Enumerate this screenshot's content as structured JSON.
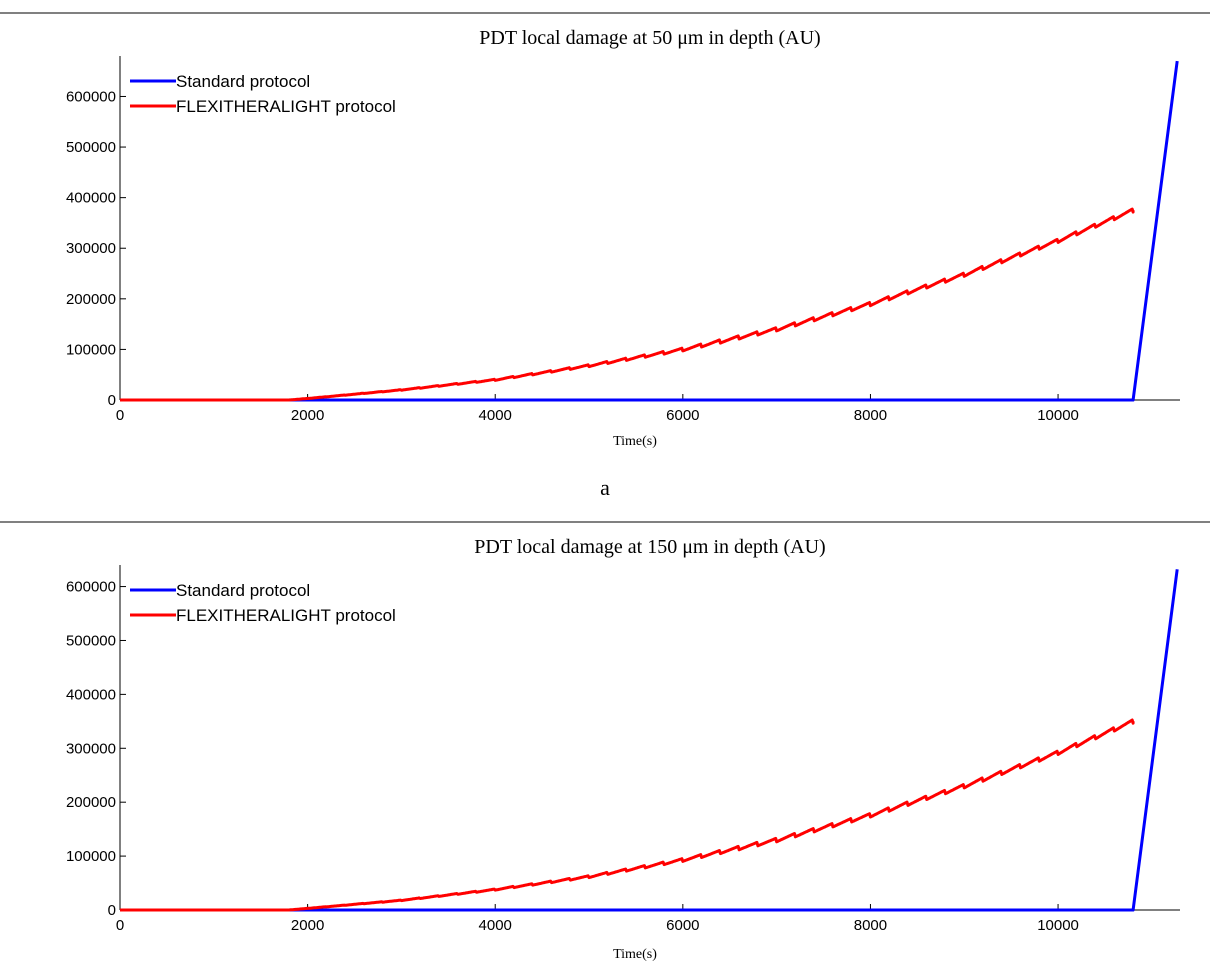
{
  "chart_data": [
    {
      "type": "line",
      "title": "PDT local damage at 50 μm in depth (AU)",
      "xlabel": "Time(s)",
      "ylabel": "",
      "xlim": [
        0,
        11300
      ],
      "ylim": [
        0,
        680000
      ],
      "xticks": [
        0,
        2000,
        4000,
        6000,
        8000,
        10000
      ],
      "yticks": [
        0,
        100000,
        200000,
        300000,
        400000,
        500000,
        600000
      ],
      "legend_position": "top-left",
      "panel_label": "a",
      "series": [
        {
          "name": "Standard protocol",
          "color": "#0000ff",
          "x": [
            0,
            10800,
            11270
          ],
          "y": [
            0,
            0,
            670000
          ]
        },
        {
          "name": "FLEXITHERALIGHT protocol",
          "color": "#ff0000",
          "x": [
            0,
            1800,
            2000,
            3000,
            4000,
            5000,
            6000,
            7000,
            8000,
            9000,
            10000,
            10800
          ],
          "y": [
            0,
            0,
            3000,
            20000,
            40000,
            68000,
            100000,
            140000,
            190000,
            248000,
            315000,
            375000
          ],
          "step_period": 200
        }
      ]
    },
    {
      "type": "line",
      "title": "PDT local damage at 150 μm in depth (AU)",
      "xlabel": "Time(s)",
      "ylabel": "",
      "xlim": [
        0,
        11300
      ],
      "ylim": [
        0,
        640000
      ],
      "xticks": [
        0,
        2000,
        4000,
        6000,
        8000,
        10000
      ],
      "yticks": [
        0,
        100000,
        200000,
        300000,
        400000,
        500000,
        600000
      ],
      "legend_position": "top-left",
      "panel_label": "",
      "series": [
        {
          "name": "Standard protocol",
          "color": "#0000ff",
          "x": [
            0,
            10800,
            11270
          ],
          "y": [
            0,
            0,
            632000
          ]
        },
        {
          "name": "FLEXITHERALIGHT protocol",
          "color": "#ff0000",
          "x": [
            0,
            1800,
            2000,
            3000,
            4000,
            5000,
            6000,
            7000,
            8000,
            9000,
            10000,
            10800
          ],
          "y": [
            0,
            0,
            3000,
            18000,
            38000,
            62000,
            93000,
            130000,
            176000,
            230000,
            292000,
            350000
          ],
          "step_period": 200
        }
      ]
    }
  ]
}
